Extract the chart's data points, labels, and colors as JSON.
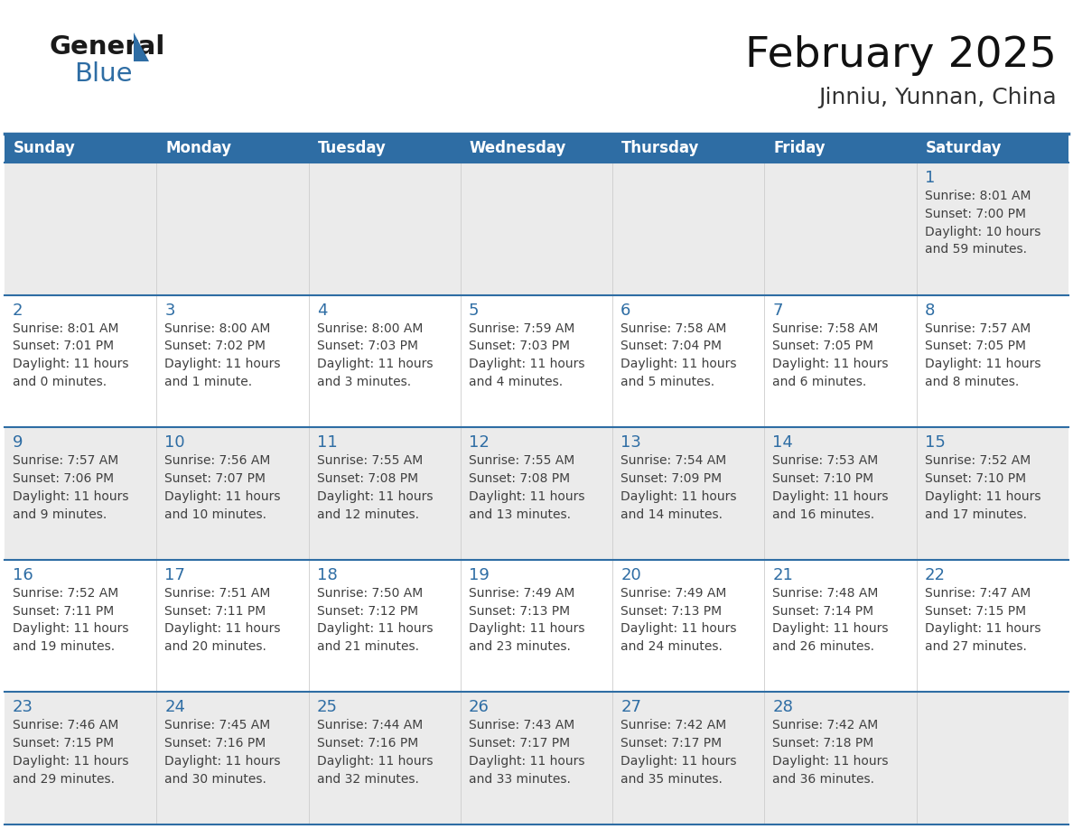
{
  "title": "February 2025",
  "subtitle": "Jinniu, Yunnan, China",
  "days_of_week": [
    "Sunday",
    "Monday",
    "Tuesday",
    "Wednesday",
    "Thursday",
    "Friday",
    "Saturday"
  ],
  "header_bg": "#2E6DA4",
  "header_text": "#FFFFFF",
  "row_bg_gray": "#EBEBEB",
  "row_bg_white": "#FFFFFF",
  "day_num_color": "#2E6DA4",
  "text_color": "#404040",
  "line_color": "#2E6DA4",
  "logo_general_color": "#1a1a1a",
  "logo_blue_color": "#2E6DA4",
  "calendar": [
    [
      null,
      null,
      null,
      null,
      null,
      null,
      {
        "day": 1,
        "sunrise": "8:01 AM",
        "sunset": "7:00 PM",
        "daylight": "10 hours and 59 minutes."
      }
    ],
    [
      {
        "day": 2,
        "sunrise": "8:01 AM",
        "sunset": "7:01 PM",
        "daylight": "11 hours and 0 minutes."
      },
      {
        "day": 3,
        "sunrise": "8:00 AM",
        "sunset": "7:02 PM",
        "daylight": "11 hours and 1 minute."
      },
      {
        "day": 4,
        "sunrise": "8:00 AM",
        "sunset": "7:03 PM",
        "daylight": "11 hours and 3 minutes."
      },
      {
        "day": 5,
        "sunrise": "7:59 AM",
        "sunset": "7:03 PM",
        "daylight": "11 hours and 4 minutes."
      },
      {
        "day": 6,
        "sunrise": "7:58 AM",
        "sunset": "7:04 PM",
        "daylight": "11 hours and 5 minutes."
      },
      {
        "day": 7,
        "sunrise": "7:58 AM",
        "sunset": "7:05 PM",
        "daylight": "11 hours and 6 minutes."
      },
      {
        "day": 8,
        "sunrise": "7:57 AM",
        "sunset": "7:05 PM",
        "daylight": "11 hours and 8 minutes."
      }
    ],
    [
      {
        "day": 9,
        "sunrise": "7:57 AM",
        "sunset": "7:06 PM",
        "daylight": "11 hours and 9 minutes."
      },
      {
        "day": 10,
        "sunrise": "7:56 AM",
        "sunset": "7:07 PM",
        "daylight": "11 hours and 10 minutes."
      },
      {
        "day": 11,
        "sunrise": "7:55 AM",
        "sunset": "7:08 PM",
        "daylight": "11 hours and 12 minutes."
      },
      {
        "day": 12,
        "sunrise": "7:55 AM",
        "sunset": "7:08 PM",
        "daylight": "11 hours and 13 minutes."
      },
      {
        "day": 13,
        "sunrise": "7:54 AM",
        "sunset": "7:09 PM",
        "daylight": "11 hours and 14 minutes."
      },
      {
        "day": 14,
        "sunrise": "7:53 AM",
        "sunset": "7:10 PM",
        "daylight": "11 hours and 16 minutes."
      },
      {
        "day": 15,
        "sunrise": "7:52 AM",
        "sunset": "7:10 PM",
        "daylight": "11 hours and 17 minutes."
      }
    ],
    [
      {
        "day": 16,
        "sunrise": "7:52 AM",
        "sunset": "7:11 PM",
        "daylight": "11 hours and 19 minutes."
      },
      {
        "day": 17,
        "sunrise": "7:51 AM",
        "sunset": "7:11 PM",
        "daylight": "11 hours and 20 minutes."
      },
      {
        "day": 18,
        "sunrise": "7:50 AM",
        "sunset": "7:12 PM",
        "daylight": "11 hours and 21 minutes."
      },
      {
        "day": 19,
        "sunrise": "7:49 AM",
        "sunset": "7:13 PM",
        "daylight": "11 hours and 23 minutes."
      },
      {
        "day": 20,
        "sunrise": "7:49 AM",
        "sunset": "7:13 PM",
        "daylight": "11 hours and 24 minutes."
      },
      {
        "day": 21,
        "sunrise": "7:48 AM",
        "sunset": "7:14 PM",
        "daylight": "11 hours and 26 minutes."
      },
      {
        "day": 22,
        "sunrise": "7:47 AM",
        "sunset": "7:15 PM",
        "daylight": "11 hours and 27 minutes."
      }
    ],
    [
      {
        "day": 23,
        "sunrise": "7:46 AM",
        "sunset": "7:15 PM",
        "daylight": "11 hours and 29 minutes."
      },
      {
        "day": 24,
        "sunrise": "7:45 AM",
        "sunset": "7:16 PM",
        "daylight": "11 hours and 30 minutes."
      },
      {
        "day": 25,
        "sunrise": "7:44 AM",
        "sunset": "7:16 PM",
        "daylight": "11 hours and 32 minutes."
      },
      {
        "day": 26,
        "sunrise": "7:43 AM",
        "sunset": "7:17 PM",
        "daylight": "11 hours and 33 minutes."
      },
      {
        "day": 27,
        "sunrise": "7:42 AM",
        "sunset": "7:17 PM",
        "daylight": "11 hours and 35 minutes."
      },
      {
        "day": 28,
        "sunrise": "7:42 AM",
        "sunset": "7:18 PM",
        "daylight": "11 hours and 36 minutes."
      },
      null
    ]
  ],
  "figsize": [
    11.88,
    9.18
  ],
  "dpi": 100
}
